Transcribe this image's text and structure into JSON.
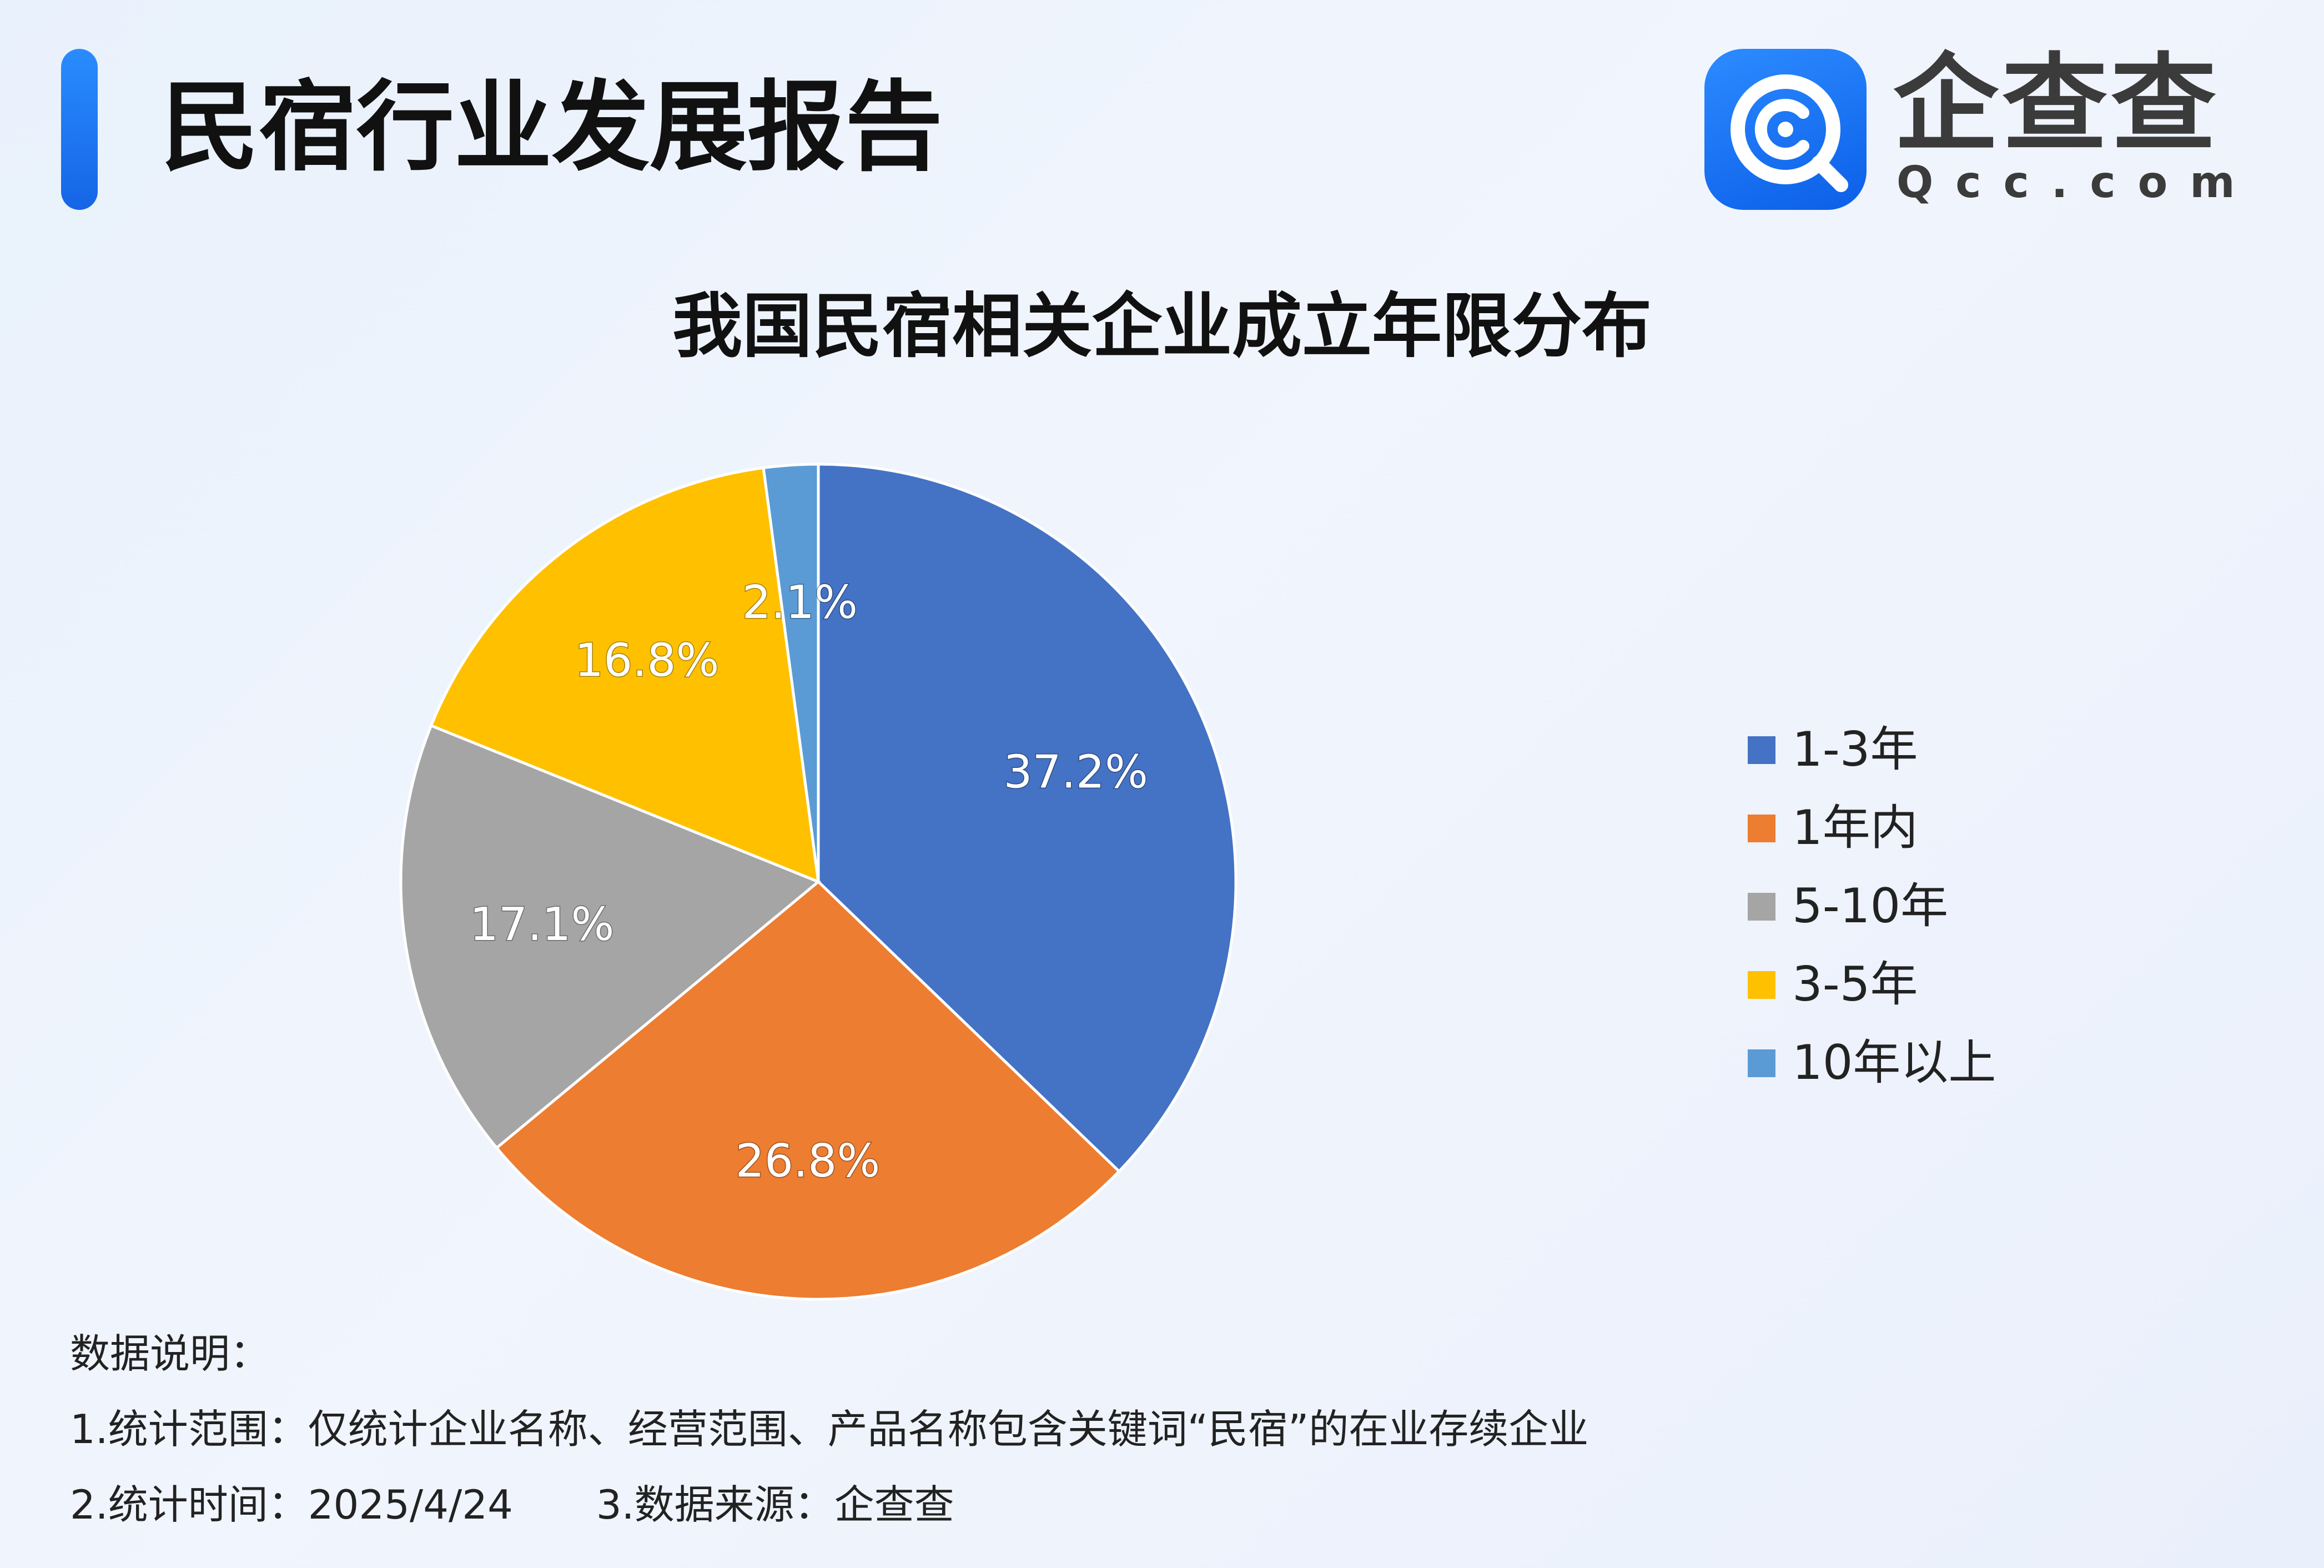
{
  "header": {
    "title": "民宿行业发展报告",
    "logo_text": "企查查",
    "logo_domain": "Qcc.com",
    "accent_color": "#1a73f0"
  },
  "chart_data": {
    "type": "pie",
    "title": "我国民宿相关企业成立年限分布",
    "start_angle_deg": 0,
    "direction": "clockwise",
    "legend_position": "right",
    "slices": [
      {
        "name": "1-3年",
        "value": 37.2,
        "label": "37.2%",
        "color": "#4472c4"
      },
      {
        "name": "1年内",
        "value": 26.8,
        "label": "26.8%",
        "color": "#ed7d31"
      },
      {
        "name": "5-10年",
        "value": 17.1,
        "label": "17.1%",
        "color": "#a5a5a5"
      },
      {
        "name": "3-5年",
        "value": 16.8,
        "label": "16.8%",
        "color": "#ffc000"
      },
      {
        "name": "10年以上",
        "value": 2.1,
        "label": "2.1%",
        "color": "#5b9bd5"
      }
    ]
  },
  "notes": {
    "heading": "数据说明：",
    "scope": "1.统计范围：仅统计企业名称、经营范围、产品名称包含关键词“民宿”的在业存续企业",
    "time": "2.统计时间：2025/4/24",
    "source": "3.数据来源：企查查"
  }
}
